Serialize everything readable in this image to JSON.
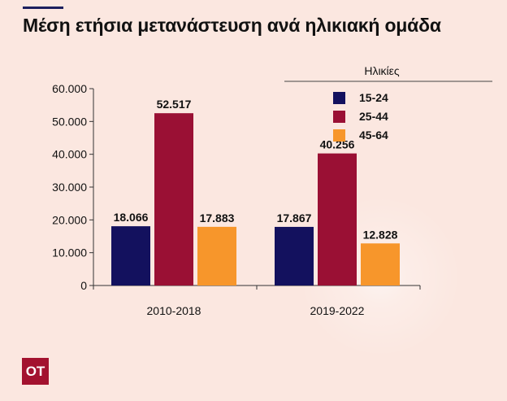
{
  "title": "Μέση ετήσια μετανάστευση ανά ηλικιακή ομάδα",
  "logo": {
    "text": "OT",
    "brand_color": "#a3122f"
  },
  "chart_data": {
    "type": "bar",
    "title": "Μέση ετήσια μετανάστευση ανά ηλικιακή ομάδα",
    "categories": [
      "2010-2018",
      "2019-2022"
    ],
    "series": [
      {
        "name": "15-24",
        "color": "#13115e",
        "values": [
          18066,
          17867
        ],
        "labels": [
          "18.066",
          "17.867"
        ]
      },
      {
        "name": "25-44",
        "color": "#9a1034",
        "values": [
          52517,
          40256
        ],
        "labels": [
          "52.517",
          "40.256"
        ]
      },
      {
        "name": "45-64",
        "color": "#f7962b",
        "values": [
          17883,
          12828
        ],
        "labels": [
          "17.883",
          "12.828"
        ]
      }
    ],
    "legend_title": "Ηλικίες",
    "legend_position": "top-right",
    "ylim": [
      0,
      60000
    ],
    "yticks": [
      0,
      10000,
      20000,
      30000,
      40000,
      50000,
      60000
    ],
    "ytick_labels": [
      "0",
      "10.000",
      "20.000",
      "30.000",
      "40.000",
      "50.000",
      "60.000"
    ],
    "grid": false
  }
}
